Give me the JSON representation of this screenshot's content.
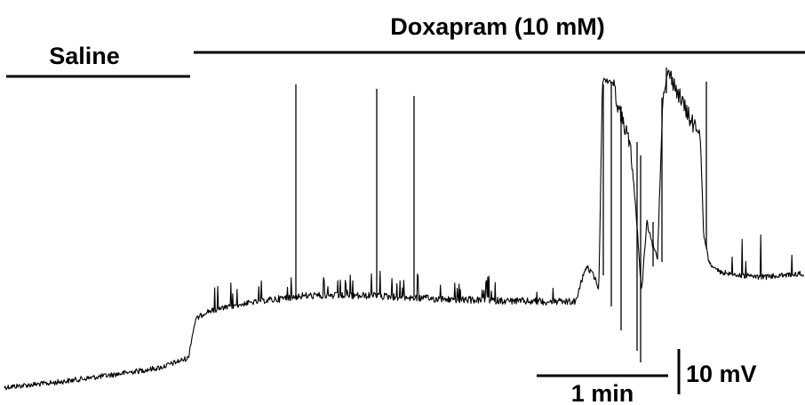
{
  "figure": {
    "conditions": [
      {
        "label": "Saline"
      },
      {
        "label": "Doxapram (10 mM)"
      }
    ],
    "scale_bar": {
      "time_label": "1 min",
      "voltage_label": "10 mV"
    },
    "trace_color": "#000000",
    "background": "#ffffff"
  }
}
